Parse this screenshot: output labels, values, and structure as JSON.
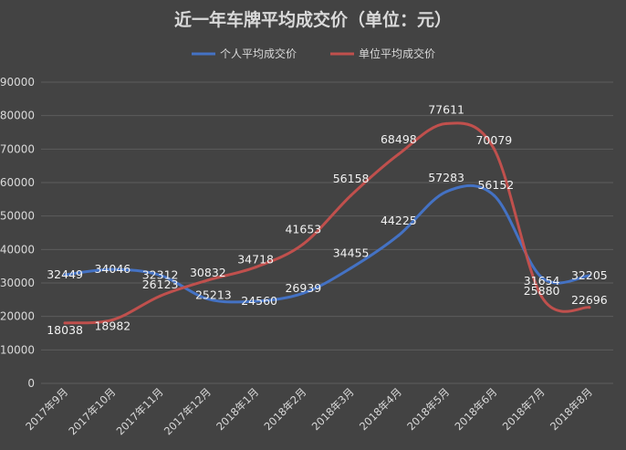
{
  "chart_data": {
    "type": "line",
    "title": "近一年车牌平均成交价（单位：元）",
    "categories": [
      "2017年9月",
      "2017年10月",
      "2017年11月",
      "2017年12月",
      "2018年1月",
      "2018年2月",
      "2018年3月",
      "2018年4月",
      "2018年5月",
      "2018年6月",
      "2018年7月",
      "2018年8月"
    ],
    "series": [
      {
        "name": "个人平均成交价",
        "color": "#4472c4",
        "values": [
          32449,
          34046,
          32312,
          25213,
          24560,
          26939,
          34455,
          44225,
          57283,
          56152,
          31654,
          32205
        ]
      },
      {
        "name": "单位平均成交价",
        "color": "#c0504d",
        "values": [
          18038,
          18982,
          26123,
          30832,
          34718,
          41653,
          56158,
          68498,
          77611,
          70079,
          25880,
          22696
        ]
      }
    ],
    "yticks": [
      "0",
      "10000",
      "20000",
      "30000",
      "40000",
      "50000",
      "60000",
      "70000",
      "80000",
      "90000"
    ],
    "ylim": [
      0,
      90000
    ],
    "grid": true,
    "legend_position": "top"
  }
}
